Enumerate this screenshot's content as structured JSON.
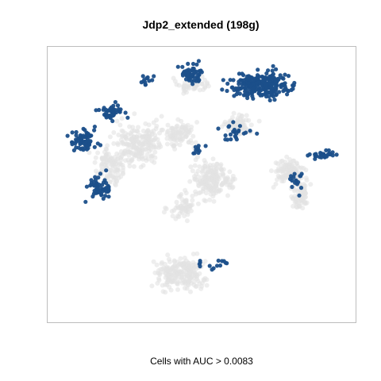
{
  "chart_data": {
    "type": "scatter",
    "title": "Jdp2_extended (198g)",
    "xlabel": "Cells with AUC > 0.0083",
    "ylabel": "",
    "axes_visible": false,
    "grid": false,
    "legend": "none",
    "xlim": [
      0,
      100
    ],
    "ylim": [
      0,
      100
    ],
    "series": [
      {
        "role": "cells below threshold",
        "color": "#e3e3e3",
        "regions": [
          {
            "cx": 30,
            "cy": 65,
            "rx": 14,
            "ry": 13,
            "n": 210
          },
          {
            "cx": 21,
            "cy": 57,
            "rx": 10,
            "ry": 10,
            "n": 110
          },
          {
            "cx": 43,
            "cy": 68,
            "rx": 8,
            "ry": 10,
            "n": 90
          },
          {
            "cx": 53,
            "cy": 52,
            "rx": 12,
            "ry": 13,
            "n": 190
          },
          {
            "cx": 44,
            "cy": 42,
            "rx": 9,
            "ry": 8,
            "n": 60
          },
          {
            "cx": 43,
            "cy": 18,
            "rx": 14,
            "ry": 10,
            "n": 220
          },
          {
            "cx": 78,
            "cy": 55,
            "rx": 9,
            "ry": 8,
            "n": 120
          },
          {
            "cx": 82,
            "cy": 46,
            "rx": 5,
            "ry": 10,
            "n": 70
          },
          {
            "cx": 62,
            "cy": 72,
            "rx": 9,
            "ry": 6,
            "n": 70
          },
          {
            "cx": 47,
            "cy": 86,
            "rx": 10,
            "ry": 5,
            "n": 50
          }
        ]
      },
      {
        "role": "cells above threshold",
        "color": "#1b4f8a",
        "regions": [
          {
            "cx": 69,
            "cy": 86,
            "rx": 17,
            "ry": 8,
            "n": 260
          },
          {
            "cx": 47,
            "cy": 90,
            "rx": 6,
            "ry": 6,
            "n": 55
          },
          {
            "cx": 12,
            "cy": 66,
            "rx": 8,
            "ry": 7,
            "n": 70
          },
          {
            "cx": 21,
            "cy": 76,
            "rx": 8,
            "ry": 5,
            "n": 45
          },
          {
            "cx": 17,
            "cy": 49,
            "rx": 8,
            "ry": 8,
            "n": 55
          },
          {
            "cx": 32,
            "cy": 88,
            "rx": 4,
            "ry": 4,
            "n": 12
          },
          {
            "cx": 89,
            "cy": 61,
            "rx": 8,
            "ry": 3,
            "n": 30
          },
          {
            "cx": 81,
            "cy": 51,
            "rx": 5,
            "ry": 8,
            "n": 16
          },
          {
            "cx": 49,
            "cy": 63,
            "rx": 4,
            "ry": 4,
            "n": 10
          },
          {
            "cx": 52,
            "cy": 21,
            "rx": 10,
            "ry": 3,
            "n": 14
          },
          {
            "cx": 60,
            "cy": 69,
            "rx": 10,
            "ry": 6,
            "n": 24
          }
        ]
      }
    ]
  }
}
